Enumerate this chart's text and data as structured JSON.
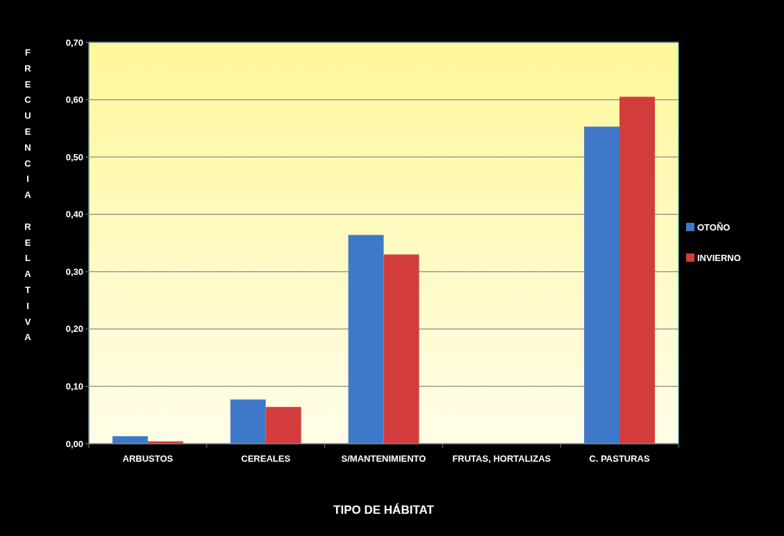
{
  "chart_data": {
    "type": "bar",
    "xlabel": "TIPO DE HÁBITAT",
    "ylabel": "FRECUENCIA RELATIVA",
    "categories": [
      "ARBUSTOS",
      "CEREALES",
      "S/MANTENIMIENTO",
      "FRUTAS, HORTALIZAS",
      "C. PASTURAS"
    ],
    "series": [
      {
        "name": "OTOÑO",
        "color": "#3f78c9",
        "values": [
          0.013,
          0.077,
          0.364,
          0,
          0.553
        ]
      },
      {
        "name": "INVIERNO",
        "color": "#d23c3c",
        "values": [
          0.004,
          0.064,
          0.33,
          0,
          0.605
        ]
      }
    ],
    "ylim": [
      0,
      0.7
    ],
    "yticks": [
      {
        "value": 0,
        "label": "0,00"
      },
      {
        "value": 0.1,
        "label": "0,10"
      },
      {
        "value": 0.2,
        "label": "0,20"
      },
      {
        "value": 0.3,
        "label": "0,30"
      },
      {
        "value": 0.4,
        "label": "0,40"
      },
      {
        "value": 0.5,
        "label": "0,50"
      },
      {
        "value": 0.6,
        "label": "0,60"
      },
      {
        "value": 0.7,
        "label": "0,70"
      }
    ],
    "grid": "y",
    "legend": "right"
  }
}
